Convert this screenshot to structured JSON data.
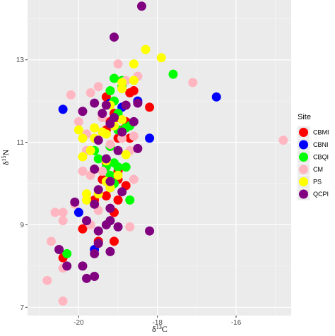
{
  "chart_data": {
    "type": "scatter",
    "title": "",
    "xlabel": "δ13C",
    "ylabel": "δ15N",
    "xlim": [
      -21.3,
      -14.6
    ],
    "ylim": [
      6.8,
      14.45
    ],
    "x_ticks": [
      -20,
      -18,
      -16
    ],
    "y_ticks": [
      7,
      9,
      11,
      13
    ],
    "grid": true,
    "legend": {
      "title": "Site",
      "position": "right"
    },
    "series": [
      {
        "name": "CBMI",
        "color": "#ff0000",
        "points": [
          [
            -19.2,
            11.5
          ],
          [
            -19.0,
            11.6
          ],
          [
            -18.8,
            11.5
          ],
          [
            -18.9,
            11.3
          ],
          [
            -19.3,
            11.3
          ],
          [
            -18.7,
            12.2
          ],
          [
            -18.6,
            12.25
          ],
          [
            -18.2,
            11.85
          ],
          [
            -19.3,
            12.1
          ],
          [
            -19.1,
            11.7
          ],
          [
            -19.0,
            11.1
          ],
          [
            -18.7,
            11.1
          ],
          [
            -19.2,
            10.9
          ],
          [
            -19.3,
            10.5
          ],
          [
            -19.0,
            10.3
          ],
          [
            -19.4,
            10.1
          ],
          [
            -19.2,
            9.9
          ],
          [
            -19.0,
            10.1
          ],
          [
            -18.8,
            9.95
          ],
          [
            -19.3,
            9.7
          ],
          [
            -19.1,
            9.3
          ],
          [
            -19.6,
            9.6
          ],
          [
            -19.0,
            9.6
          ],
          [
            -19.9,
            8.9
          ],
          [
            -19.5,
            8.6
          ],
          [
            -19.1,
            8.6
          ],
          [
            -20.4,
            8.2
          ]
        ]
      },
      {
        "name": "CBNI",
        "color": "#0000ff",
        "points": [
          [
            -20.4,
            11.8
          ],
          [
            -19.2,
            11.95
          ],
          [
            -18.9,
            11.85
          ],
          [
            -18.5,
            12.0
          ],
          [
            -18.2,
            11.1
          ],
          [
            -16.5,
            12.1
          ],
          [
            -20.0,
            9.3
          ],
          [
            -19.6,
            8.4
          ]
        ]
      },
      {
        "name": "CBQI",
        "color": "#00ff00",
        "points": [
          [
            -19.1,
            12.55
          ],
          [
            -18.9,
            12.5
          ],
          [
            -17.6,
            12.65
          ],
          [
            -19.2,
            12.25
          ],
          [
            -18.9,
            12.35
          ],
          [
            -19.1,
            12.0
          ],
          [
            -19.0,
            11.7
          ],
          [
            -18.7,
            11.4
          ],
          [
            -19.0,
            11.3
          ],
          [
            -18.8,
            11.35
          ],
          [
            -19.2,
            10.9
          ],
          [
            -19.6,
            10.8
          ],
          [
            -19.5,
            10.6
          ],
          [
            -19.1,
            10.5
          ],
          [
            -19.3,
            10.4
          ],
          [
            -19.0,
            10.4
          ],
          [
            -18.8,
            10.4
          ],
          [
            -19.2,
            10.2
          ],
          [
            -19.1,
            10.0
          ],
          [
            -18.7,
            9.6
          ],
          [
            -20.3,
            8.3
          ]
        ]
      },
      {
        "name": "CM",
        "color": "#ffb6c1",
        "points": [
          [
            -19.0,
            12.9
          ],
          [
            -18.5,
            12.6
          ],
          [
            -18.8,
            12.5
          ],
          [
            -17.1,
            12.45
          ],
          [
            -19.5,
            12.35
          ],
          [
            -19.7,
            12.2
          ],
          [
            -20.2,
            12.15
          ],
          [
            -19.4,
            11.6
          ],
          [
            -20.0,
            11.5
          ],
          [
            -19.8,
            11.2
          ],
          [
            -18.6,
            11.15
          ],
          [
            -19.5,
            11.05
          ],
          [
            -18.9,
            11.1
          ],
          [
            -19.2,
            10.95
          ],
          [
            -18.7,
            10.8
          ],
          [
            -19.8,
            10.8
          ],
          [
            -19.4,
            10.3
          ],
          [
            -19.7,
            10.2
          ],
          [
            -19.9,
            10.3
          ],
          [
            -18.6,
            10.1
          ],
          [
            -20.1,
            9.5
          ],
          [
            -19.5,
            9.35
          ],
          [
            -19.7,
            9.0
          ],
          [
            -20.4,
            9.3
          ],
          [
            -20.6,
            9.3
          ],
          [
            -20.4,
            9.1
          ],
          [
            -18.7,
            8.95
          ],
          [
            -20.7,
            8.6
          ],
          [
            -20.4,
            7.95
          ],
          [
            -20.8,
            7.65
          ],
          [
            -20.4,
            7.15
          ],
          [
            -14.8,
            11.05
          ]
        ]
      },
      {
        "name": "PS",
        "color": "#ffff00",
        "points": [
          [
            -18.3,
            13.25
          ],
          [
            -17.9,
            13.05
          ],
          [
            -18.6,
            12.9
          ],
          [
            -18.9,
            12.45
          ],
          [
            -18.6,
            12.5
          ],
          [
            -18.9,
            12.3
          ],
          [
            -19.2,
            11.9
          ],
          [
            -18.9,
            11.55
          ],
          [
            -19.1,
            11.4
          ],
          [
            -19.6,
            11.35
          ],
          [
            -19.4,
            11.25
          ],
          [
            -19.6,
            11.1
          ],
          [
            -19.3,
            11.2
          ],
          [
            -20.0,
            11.3
          ],
          [
            -19.9,
            11.1
          ],
          [
            -19.7,
            10.8
          ],
          [
            -19.9,
            10.65
          ],
          [
            -18.8,
            10.7
          ],
          [
            -19.3,
            10.55
          ],
          [
            -19.6,
            10.35
          ],
          [
            -19.0,
            10.2
          ],
          [
            -19.3,
            10.05
          ],
          [
            -19.8,
            9.75
          ],
          [
            -19.5,
            9.75
          ],
          [
            -19.2,
            9.9
          ],
          [
            -19.8,
            9.6
          ]
        ]
      },
      {
        "name": "QCPI",
        "color": "#800080",
        "points": [
          [
            -18.4,
            14.3
          ],
          [
            -19.1,
            13.55
          ],
          [
            -18.5,
            11.95
          ],
          [
            -19.6,
            11.95
          ],
          [
            -19.3,
            11.9
          ],
          [
            -18.8,
            11.9
          ],
          [
            -19.4,
            11.7
          ],
          [
            -19.9,
            11.75
          ],
          [
            -19.1,
            11.6
          ],
          [
            -19.2,
            11.45
          ],
          [
            -18.6,
            11.5
          ],
          [
            -18.9,
            11.25
          ],
          [
            -19.5,
            11.05
          ],
          [
            -19.0,
            10.8
          ],
          [
            -18.5,
            10.85
          ],
          [
            -19.3,
            10.6
          ],
          [
            -19.6,
            10.35
          ],
          [
            -19.2,
            10.05
          ],
          [
            -19.5,
            9.85
          ],
          [
            -18.9,
            9.8
          ],
          [
            -19.6,
            9.5
          ],
          [
            -19.2,
            9.4
          ],
          [
            -20.1,
            9.55
          ],
          [
            -19.8,
            9.1
          ],
          [
            -19.3,
            9.0
          ],
          [
            -19.5,
            8.85
          ],
          [
            -19.0,
            8.95
          ],
          [
            -19.2,
            9.1
          ],
          [
            -18.2,
            8.85
          ],
          [
            -19.5,
            8.55
          ],
          [
            -19.6,
            8.3
          ],
          [
            -19.2,
            8.35
          ],
          [
            -19.9,
            8.0
          ],
          [
            -20.5,
            8.4
          ],
          [
            -20.3,
            8.0
          ],
          [
            -19.8,
            7.7
          ],
          [
            -19.6,
            7.75
          ]
        ]
      }
    ]
  }
}
